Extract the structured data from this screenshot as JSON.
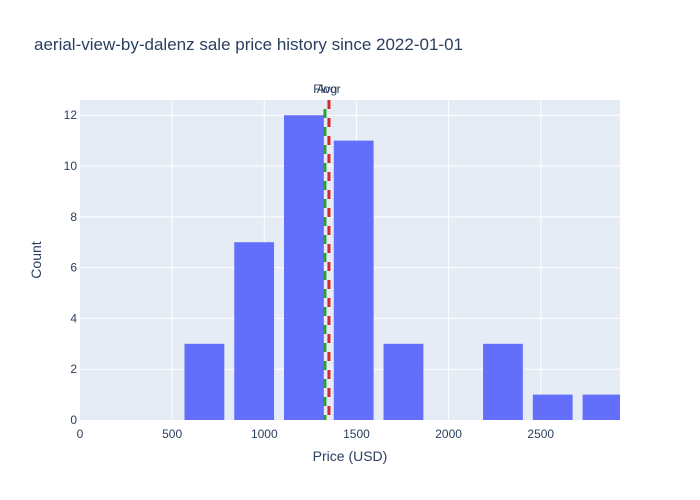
{
  "chart_data": {
    "type": "bar",
    "title": "aerial-view-by-dalenz sale price history since 2022-01-01",
    "xlabel": "Price (USD)",
    "ylabel": "Count",
    "xlim": [
      0,
      2930
    ],
    "ylim": [
      0,
      12.6
    ],
    "x_ticks": [
      0,
      500,
      1000,
      1500,
      2000,
      2500
    ],
    "x_tick_labels": [
      "0",
      "500",
      "1000",
      "1500",
      "2000",
      "2500"
    ],
    "y_ticks": [
      0,
      2,
      4,
      6,
      8,
      10,
      12
    ],
    "y_tick_labels": [
      "0",
      "2",
      "4",
      "6",
      "8",
      "10",
      "12"
    ],
    "bin_width": 270,
    "bins": [
      {
        "x0": 540,
        "x1": 810,
        "count": 3
      },
      {
        "x0": 810,
        "x1": 1080,
        "count": 7
      },
      {
        "x0": 1080,
        "x1": 1350,
        "count": 12
      },
      {
        "x0": 1350,
        "x1": 1620,
        "count": 11
      },
      {
        "x0": 1620,
        "x1": 1890,
        "count": 3
      },
      {
        "x0": 1890,
        "x1": 2160,
        "count": 0
      },
      {
        "x0": 2160,
        "x1": 2430,
        "count": 3
      },
      {
        "x0": 2430,
        "x1": 2700,
        "count": 1
      },
      {
        "x0": 2700,
        "x1": 2970,
        "count": 1
      }
    ],
    "reference_lines": [
      {
        "label": "Avg",
        "x": 1340,
        "color": "#d62728"
      },
      {
        "label": "Floor",
        "x": 1340,
        "color": "#2ca02c"
      }
    ],
    "bar_color": "#636efa",
    "plot_background": "#e5ecf6",
    "grid": true,
    "legend": "none"
  }
}
